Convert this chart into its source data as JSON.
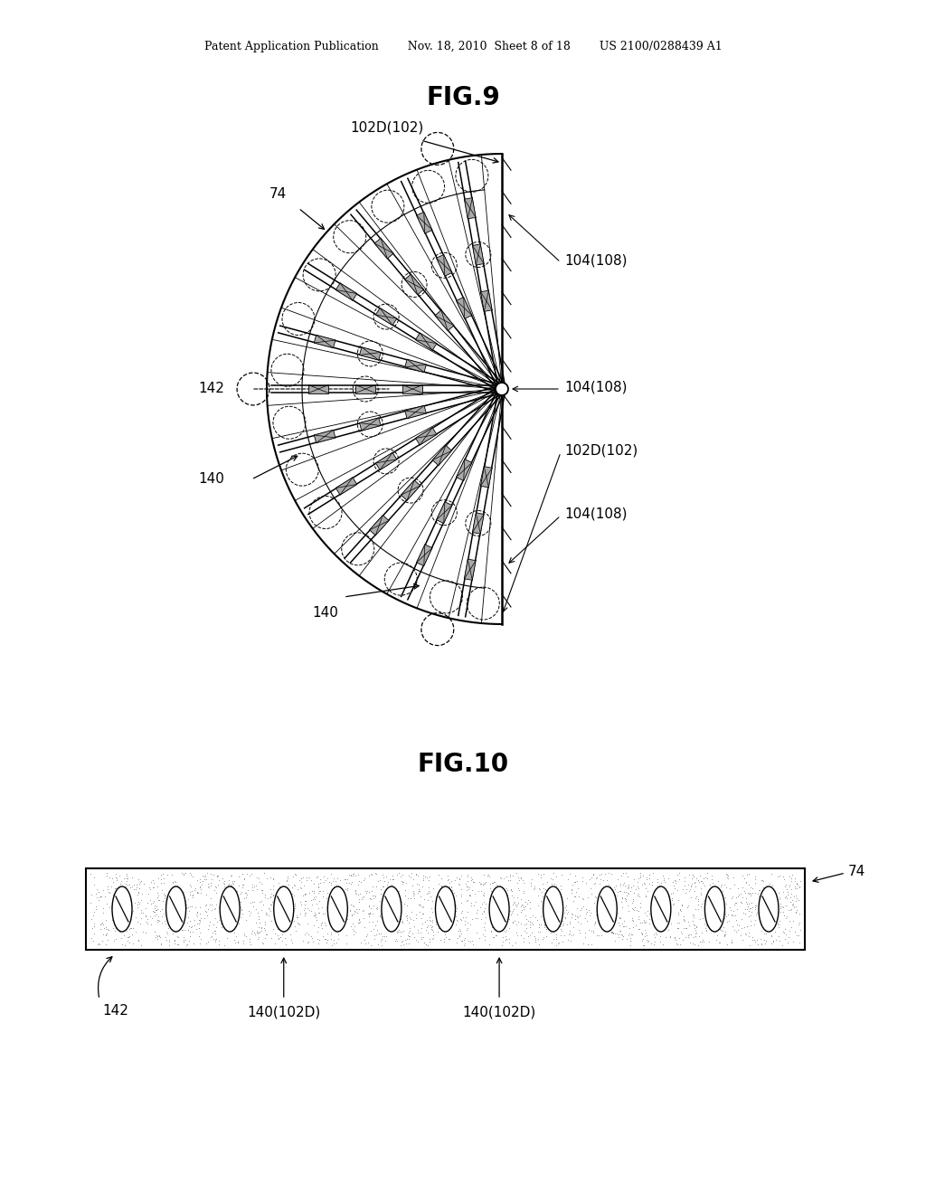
{
  "bg_color": "#ffffff",
  "fig_width": 10.24,
  "fig_height": 13.2,
  "header_left": "Patent Application Publication",
  "header_mid": "Nov. 18, 2010  Sheet 8 of 18",
  "header_right": "US 2100/0288439 A1",
  "header_text": "Patent Application Publication        Nov. 18, 2010  Sheet 8 of 18        US 2100/0288439 A1",
  "fig9_title": "FIG.9",
  "fig10_title": "FIG.10",
  "label_102D_top": "102D(102)",
  "label_102D_bottom": "102D(102)",
  "label_74": "74",
  "label_142": "142",
  "label_140_left": "140",
  "label_140_bottom": "140",
  "label_104_108_top": "104(108)",
  "label_104_108_mid": "104(108)",
  "label_104_108_bot": "104(108)",
  "fig10_label_74": "74",
  "fig10_label_142": "142",
  "fig10_label_140a": "140(102D)",
  "fig10_label_140b": "140(102D)"
}
